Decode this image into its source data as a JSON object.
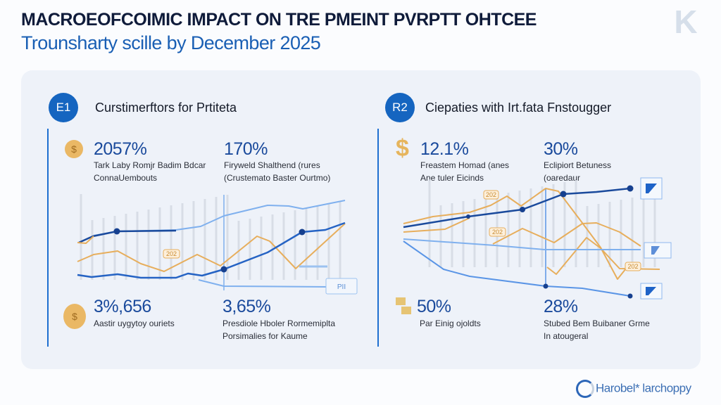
{
  "header": {
    "title": "MACROEOFCOIMIC IMPACT ON TRE PMEINT PVRPTT OHTCEE",
    "subtitle": "Trounsharty scille by December 2025",
    "logo_text": "K"
  },
  "sections": [
    {
      "badge": "E1",
      "heading": "Curstimerftors for Prtiteta",
      "stats": [
        {
          "icon": "coin-icon",
          "value": "2057%",
          "desc": [
            "Tark Laby Romjr Badim Bdcar",
            "ConnaUembouts"
          ]
        },
        {
          "icon": "",
          "value": "170%",
          "desc": [
            "Firyweld Shalthend (rures",
            "(Crustemato Baster Ourtmo)"
          ]
        },
        {
          "icon": "money-bag-icon",
          "value": "3%,656",
          "desc": [
            "Aastir uygytoy ouriets"
          ]
        },
        {
          "icon": "",
          "value": "3,65%",
          "desc": [
            "Presdiole Hboler Rormemiplta",
            "Porsimalies for Kaume"
          ]
        }
      ],
      "chart_labels": [
        "202",
        "PII"
      ]
    },
    {
      "badge": "R2",
      "heading": "Ciepaties with Irt.fata Fnstougger",
      "stats": [
        {
          "icon": "dollar-icon",
          "value": "12.1%",
          "desc": [
            "Freastem Homad (anes",
            "Ane tuler Eicinds"
          ]
        },
        {
          "icon": "",
          "value": "30%",
          "desc": [
            "Eclipiort Betuness",
            "(oaredaur"
          ]
        },
        {
          "icon": "cash-icon",
          "value": "50%",
          "desc": [
            "Par Einig ojoldts"
          ]
        },
        {
          "icon": "",
          "value": "28%",
          "desc": [
            "Stubed Bem Buibaner Grme",
            "In atougeral"
          ]
        }
      ],
      "chart_labels": [
        "202",
        "202",
        "202"
      ]
    }
  ],
  "footer": {
    "brand": "Harobel* larchoppy"
  },
  "colors": {
    "primary": "#1565c0",
    "dark_line": "#1a4a9c",
    "light_line": "#6fa3e8",
    "orange_line": "#e7ae5c",
    "panel": "#eef2f9"
  }
}
